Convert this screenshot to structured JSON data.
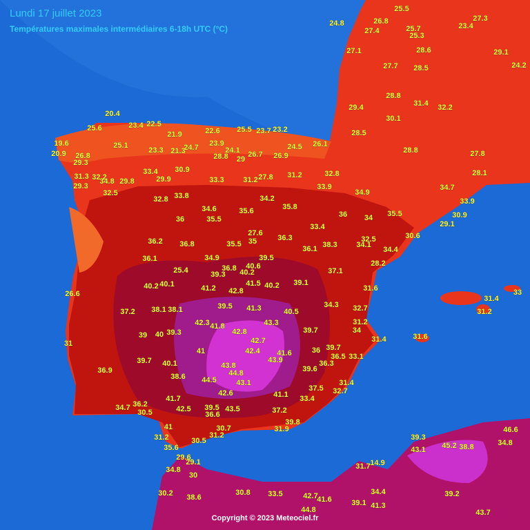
{
  "header": {
    "title": "Lundi 17 juillet 2023",
    "subtitle": "Températures maximales intermédiaires 6-18h UTC (°C)"
  },
  "labels": [
    20.4,
    23.4,
    22.5,
    21.9,
    25.6,
    25.1,
    19.6,
    20.9,
    26.8,
    29.3,
    22.6,
    25.5,
    23.7,
    23.2,
    23.3,
    21.3,
    24.7,
    23.9,
    28.8,
    24.1,
    29,
    26.7,
    26.9,
    24.5,
    26.1,
    31.3,
    32.2,
    34.8,
    29.8,
    33.4,
    30.9,
    29.9,
    33.3,
    31.2,
    27.8,
    31.2,
    32.8,
    33.9,
    34.9,
    29.3,
    32.5,
    32.8,
    33.8,
    34.2,
    35.8,
    34.6,
    35.6,
    36,
    35.5,
    36,
    34,
    35.5,
    33.4,
    27.6,
    35,
    36.3,
    36.2,
    36.8,
    35.5,
    36.1,
    38.3,
    32.5,
    34.1,
    34.4,
    30.6,
    36.1,
    34.9,
    39.5,
    25.4,
    36.8,
    40.6,
    39.3,
    40.2,
    37.1,
    28.2,
    40.2,
    40.1,
    41.2,
    41.5,
    40.2,
    39.1,
    42.8,
    31.6,
    26.6,
    37.2,
    38.1,
    38.1,
    39.5,
    41.3,
    40.5,
    34.3,
    32.7,
    42.3,
    41.8,
    43.3,
    31.2,
    39,
    40,
    39.3,
    42.8,
    39.7,
    34,
    42.7,
    31.4,
    31,
    41,
    42.4,
    41.6,
    43.9,
    36,
    39.7,
    36.5,
    33.1,
    39.7,
    40.1,
    43.8,
    36.3,
    39.6,
    44.8,
    36.9,
    38.6,
    44.5,
    43.1,
    31.4,
    37.5,
    32.7,
    42.6,
    41.1,
    33.4,
    41.7,
    34.7,
    36.2,
    30.5,
    42.5,
    39.5,
    36.6,
    43.5,
    37.2,
    39.8,
    41,
    30.7,
    31.2,
    31.9,
    31.2,
    30.5,
    35.6,
    29.6,
    29.1,
    34.8,
    30,
    30.2,
    38.6,
    30.8,
    33.5,
    42.7,
    41.6,
    44.8,
    39.1,
    41.3,
    34.4,
    31.7,
    14.9,
    39.3,
    45.2,
    38.8,
    43.1,
    46.6,
    34.8,
    39.2,
    43.7,
    31.6,
    33,
    31.4,
    31.2,
    25.5,
    25.7,
    25.3,
    26.8,
    27.4,
    23.4,
    27.3,
    27.1,
    28.6,
    29.1,
    28.5,
    27.7,
    28.8,
    31.4,
    32.2,
    29.4,
    30.1,
    28.5,
    28.8,
    27.8,
    28.1,
    33.9,
    30.9,
    29.1,
    34.7,
    24.8,
    24.2
  ],
  "copyright": "Copyright © 2023 Meteociel.fr"
}
